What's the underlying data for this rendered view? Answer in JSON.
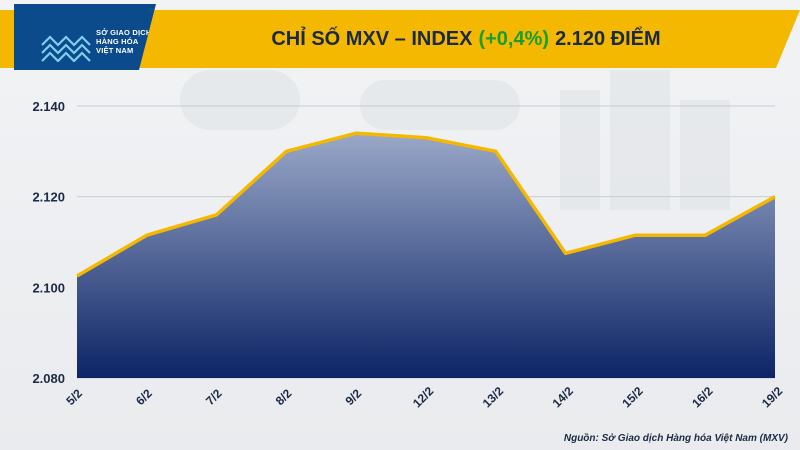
{
  "header": {
    "logo_lines": [
      "SỞ GIAO DỊCH",
      "HÀNG HÓA",
      "VIỆT NAM"
    ],
    "title_prefix": "CHỈ SỐ MXV – INDEX",
    "title_change": "(+0,4%)",
    "title_value": "2.120 ĐIỂM"
  },
  "colors": {
    "accent": "#f5b800",
    "brand": "#0b4a8b",
    "change_positive": "#1a9e33",
    "area_top": "#9aa8c8",
    "area_bottom": "#0c2466",
    "line": "#f5b800"
  },
  "chart_data": {
    "type": "area",
    "categories": [
      "5/2",
      "6/2",
      "7/2",
      "8/2",
      "9/2",
      "12/2",
      "13/2",
      "14/2",
      "15/2",
      "16/2",
      "19/2"
    ],
    "values": [
      2102.5,
      2111.5,
      2116,
      2130,
      2134,
      2133,
      2130,
      2107.5,
      2111.5,
      2111.5,
      2120
    ],
    "yticks": [
      "2.080",
      "2.100",
      "2.120",
      "2.140"
    ],
    "ytick_values": [
      2080,
      2100,
      2120,
      2140
    ],
    "ylim": [
      2080,
      2140
    ],
    "grid": true,
    "title": "CHỈ SỐ MXV – INDEX (+0,4%) 2.120 ĐIỂM",
    "xlabel": "",
    "ylabel": ""
  },
  "source": "Nguồn: Sở Giao dịch Hàng hóa Việt Nam (MXV)"
}
